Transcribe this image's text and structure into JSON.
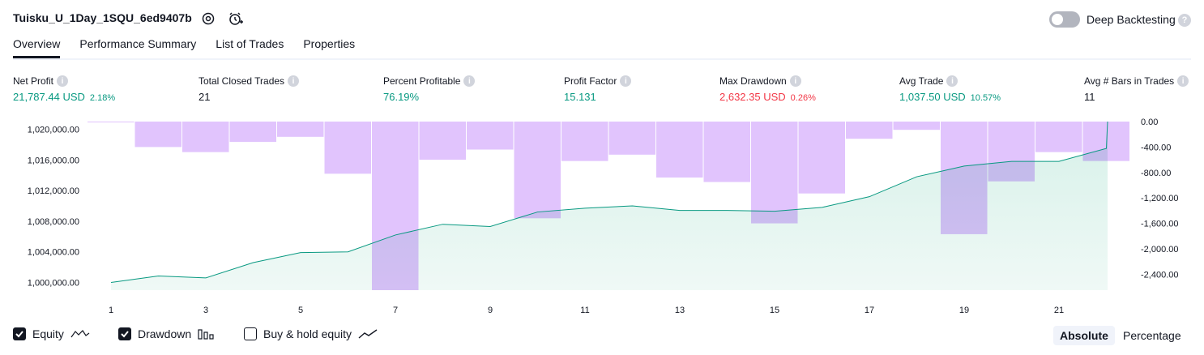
{
  "header": {
    "title": "Tuisku_U_1Day_1SQU_6ed9407b",
    "deep_backtesting_label": "Deep Backtesting",
    "deep_backtesting_enabled": false
  },
  "tabs": [
    {
      "label": "Overview",
      "active": true
    },
    {
      "label": "Performance Summary",
      "active": false
    },
    {
      "label": "List of Trades",
      "active": false
    },
    {
      "label": "Properties",
      "active": false
    }
  ],
  "metrics": [
    {
      "label": "Net Profit",
      "value": "21,787.44 USD",
      "pct": "2.18%",
      "tone": "pos"
    },
    {
      "label": "Total Closed Trades",
      "value": "21",
      "pct": "",
      "tone": "neu"
    },
    {
      "label": "Percent Profitable",
      "value": "76.19%",
      "pct": "",
      "tone": "pos"
    },
    {
      "label": "Profit Factor",
      "value": "15.131",
      "pct": "",
      "tone": "pos"
    },
    {
      "label": "Max Drawdown",
      "value": "2,632.35 USD",
      "pct": "0.26%",
      "tone": "neg"
    },
    {
      "label": "Avg Trade",
      "value": "1,037.50 USD",
      "pct": "10.57%",
      "tone": "pos"
    },
    {
      "label": "Avg # Bars in Trades",
      "value": "11",
      "pct": "",
      "tone": "neu"
    }
  ],
  "chart_data": {
    "type": "line+bar",
    "x_ticks": [
      "1",
      "3",
      "5",
      "7",
      "9",
      "11",
      "13",
      "15",
      "17",
      "19",
      "21"
    ],
    "left_axis": {
      "ticks": [
        "1,000,000.00",
        "1,004,000.00",
        "1,008,000.00",
        "1,012,000.00",
        "1,016,000.00",
        "1,020,000.00"
      ],
      "range": [
        999000,
        1021000
      ]
    },
    "right_axis": {
      "ticks": [
        "0.00",
        "-400.00",
        "-800.00",
        "-1,200.00",
        "-1,600.00",
        "-2,000.00",
        "-2,400.00"
      ],
      "range": [
        -2650,
        0
      ]
    },
    "equity": {
      "name": "Equity",
      "x": [
        1,
        2,
        3,
        4,
        5,
        6,
        7,
        8,
        9,
        10,
        11,
        12,
        13,
        14,
        15,
        16,
        17,
        18,
        19,
        20,
        21,
        22,
        23
      ],
      "values": [
        1000000,
        1000850,
        1000600,
        1002600,
        1003900,
        1004000,
        1006200,
        1007600,
        1007300,
        1009200,
        1009700,
        1010000,
        1009400,
        1009400,
        1009300,
        1009800,
        1011200,
        1013800,
        1015200,
        1015800,
        1015800,
        1017500,
        1021000
      ]
    },
    "drawdown": {
      "name": "Drawdown",
      "x": [
        1,
        2,
        3,
        4,
        5,
        6,
        7,
        8,
        9,
        10,
        11,
        12,
        13,
        14,
        15,
        16,
        17,
        18,
        19,
        20,
        21,
        22
      ],
      "values": [
        0,
        -400,
        -480,
        -320,
        -240,
        -820,
        -2650,
        -600,
        -440,
        -1520,
        -620,
        -520,
        -880,
        -950,
        -1600,
        -1130,
        -270,
        -130,
        -1770,
        -940,
        -480,
        -620
      ]
    }
  },
  "legend": {
    "equity": {
      "label": "Equity",
      "checked": true
    },
    "drawdown": {
      "label": "Drawdown",
      "checked": true
    },
    "buyhold": {
      "label": "Buy & hold equity",
      "checked": false
    }
  },
  "modes": {
    "absolute": "Absolute",
    "percentage": "Percentage",
    "active": "absolute"
  },
  "colors": {
    "equity_line": "#089981",
    "equity_fill": "#d6f0e9",
    "drawdown_bar": "#e1c4fd",
    "overlap": "#b8b9ec"
  }
}
